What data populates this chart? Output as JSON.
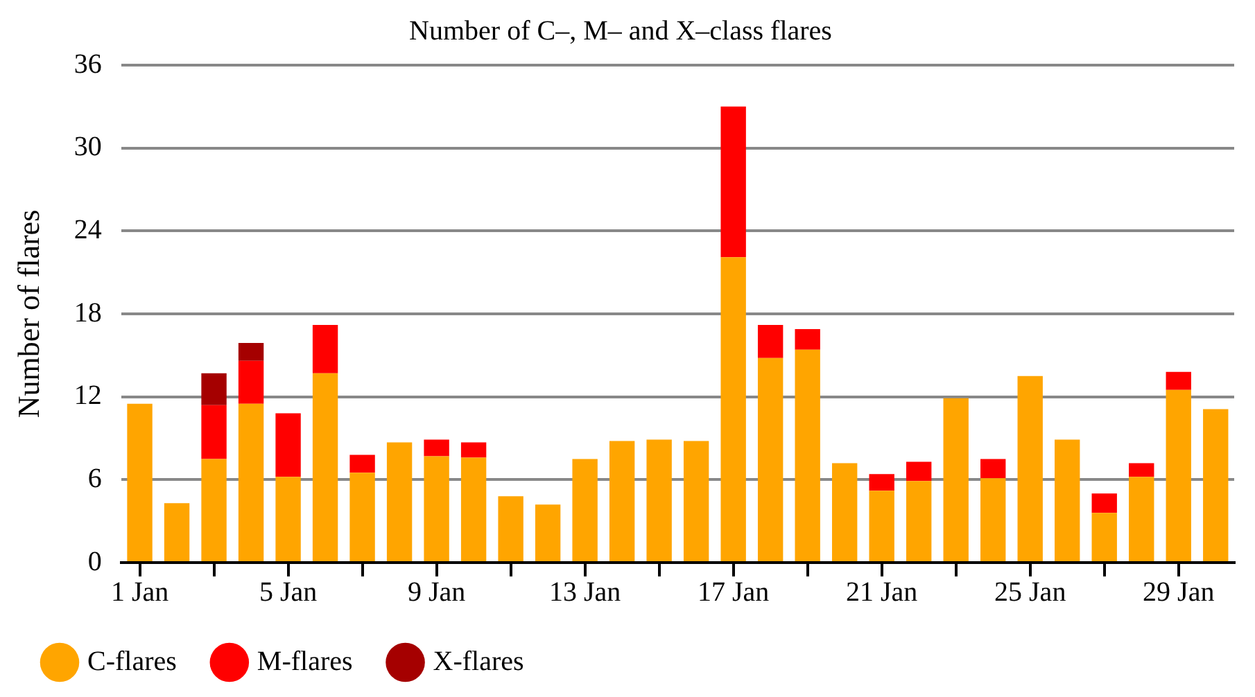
{
  "chart_data": {
    "type": "bar",
    "title": "Number of C–, M– and X–class flares",
    "ylabel": "Number of flares",
    "categories": [
      "1 Jan",
      null,
      null,
      null,
      "5 Jan",
      null,
      null,
      null,
      "9 Jan",
      null,
      null,
      null,
      "13 Jan",
      null,
      null,
      null,
      "17 Jan",
      null,
      null,
      null,
      "21 Jan",
      null,
      null,
      null,
      "25 Jan",
      null,
      null,
      null,
      "29 Jan",
      null
    ],
    "stacked": true,
    "series": [
      {
        "name": "C-flares",
        "color": "#ffa500",
        "values": [
          11.5,
          4.3,
          7.5,
          11.5,
          6.2,
          13.7,
          6.5,
          8.7,
          7.7,
          7.6,
          4.8,
          4.2,
          7.5,
          8.8,
          8.9,
          8.8,
          22.1,
          14.8,
          15.4,
          7.2,
          5.2,
          5.9,
          11.9,
          6.1,
          13.5,
          8.9,
          3.6,
          6.2,
          12.5,
          11.1
        ]
      },
      {
        "name": "M-flares",
        "color": "#ff0000",
        "values": [
          null,
          null,
          3.9,
          3.1,
          4.6,
          3.5,
          1.3,
          null,
          1.2,
          1.1,
          null,
          null,
          null,
          null,
          null,
          null,
          10.9,
          2.4,
          1.5,
          null,
          1.2,
          1.4,
          null,
          1.4,
          null,
          null,
          1.4,
          1.0,
          1.3,
          null
        ]
      },
      {
        "name": "X-flares",
        "color": "#a50000",
        "values": [
          null,
          null,
          2.3,
          1.3,
          null,
          null,
          null,
          null,
          null,
          null,
          null,
          null,
          null,
          null,
          null,
          null,
          null,
          null,
          null,
          null,
          null,
          null,
          null,
          null,
          null,
          null,
          null,
          null,
          null,
          null
        ]
      }
    ],
    "ylim": [
      0,
      36
    ],
    "yticks": [
      0,
      6,
      12,
      18,
      24,
      30,
      36
    ],
    "grid": "y",
    "legend": "bottom left"
  }
}
